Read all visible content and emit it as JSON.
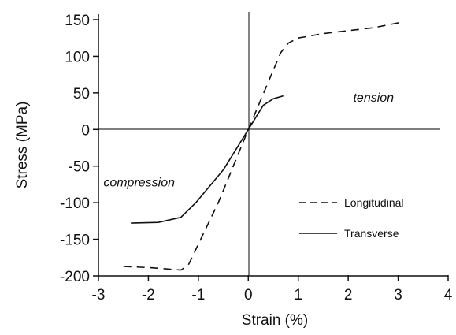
{
  "chart_data": {
    "type": "line",
    "xlabel": "Strain (%)",
    "ylabel": "Stress (MPa)",
    "xlim": [
      -3,
      4
    ],
    "ylim": [
      -200,
      150
    ],
    "xticks": [
      -3,
      -2,
      -1,
      0,
      1,
      2,
      3,
      4
    ],
    "yticks": [
      150,
      100,
      50,
      0,
      -50,
      -100,
      -150,
      -200
    ],
    "grid": false,
    "legend_position": "right",
    "annotations": [
      {
        "text": "tension",
        "x": 2.1,
        "y": 38
      },
      {
        "text": "compression",
        "x": -2.9,
        "y": -78
      }
    ],
    "series": [
      {
        "name": "Longitudinal",
        "style": "dashed",
        "x": [
          -2.5,
          -1.9,
          -1.35,
          -1.2,
          -0.6,
          0,
          0.4,
          0.65,
          0.8,
          1.0,
          1.5,
          2.0,
          2.5,
          3.1
        ],
        "y": [
          -187,
          -189,
          -192,
          -185,
          -100,
          0,
          65,
          105,
          118,
          125,
          131,
          135,
          139,
          147
        ]
      },
      {
        "name": "Transverse",
        "style": "solid",
        "x": [
          -2.35,
          -1.8,
          -1.35,
          -1.05,
          -0.5,
          0,
          0.3,
          0.5,
          0.7
        ],
        "y": [
          -128,
          -127,
          -120,
          -100,
          -55,
          0,
          33,
          42,
          46
        ]
      }
    ]
  }
}
